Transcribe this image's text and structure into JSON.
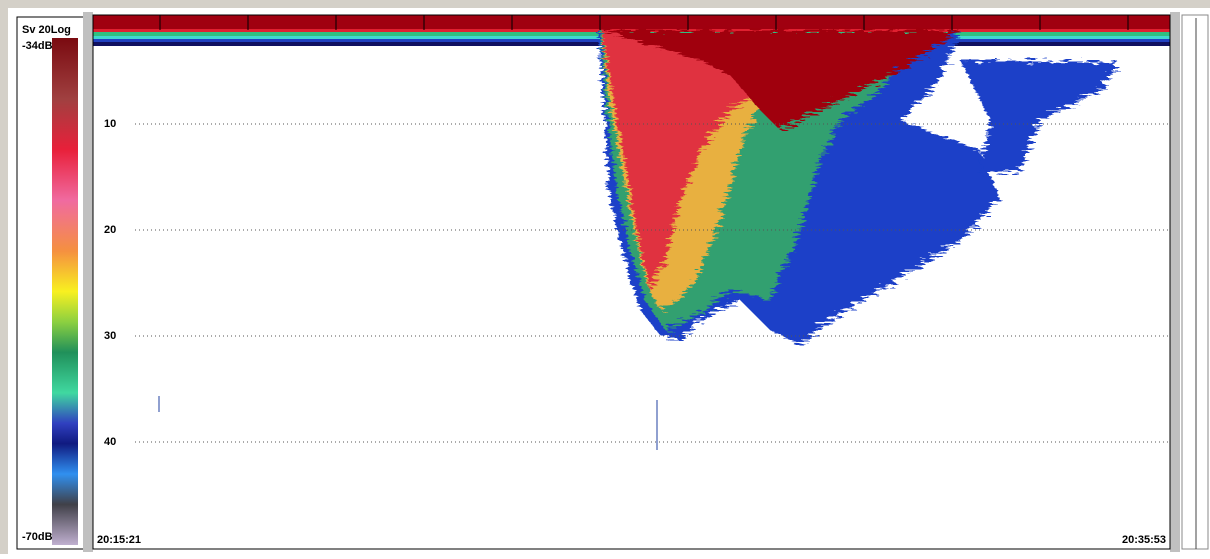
{
  "legend": {
    "title": "Sv 20Log",
    "max": "-34dB",
    "min": "-70dB"
  },
  "depth_labels": [
    "10",
    "20",
    "30",
    "40"
  ],
  "time_start": "20:15:21",
  "time_end": "20:35:53"
}
